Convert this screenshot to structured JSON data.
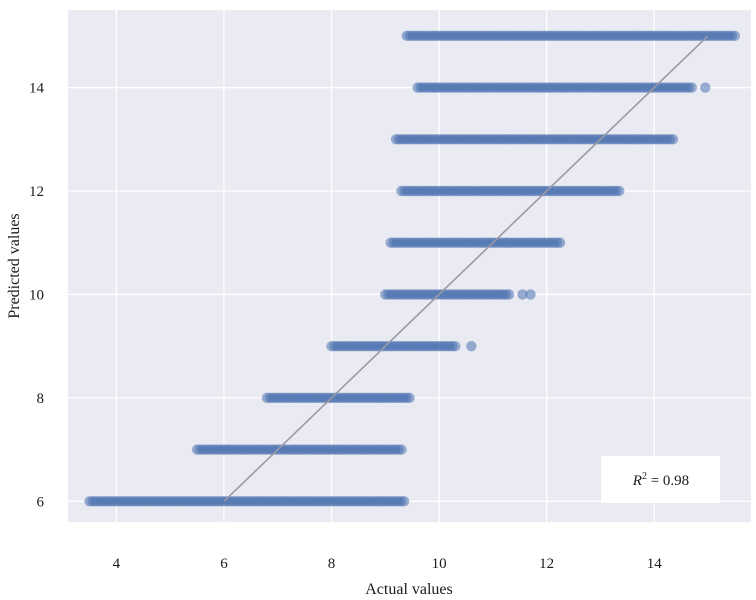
{
  "chart_data": {
    "type": "scatter",
    "xlabel": "Actual values",
    "ylabel": "Predicted values",
    "xlim": [
      3.1,
      15.8
    ],
    "ylim": [
      5.6,
      15.5
    ],
    "xticks": [
      4,
      6,
      8,
      10,
      12,
      14
    ],
    "yticks": [
      6,
      8,
      10,
      12,
      14
    ],
    "grid": true,
    "colors": {
      "background": "#eaeaf2",
      "grid": "#ffffff",
      "points": "#4c72b0",
      "fit_line": "#9a9aa6"
    },
    "annotation": {
      "r2_symbol": "R",
      "r2_superscript": "2",
      "r2_text": " = 0.98",
      "r2_value": 0.98,
      "placement": "bottom-right"
    },
    "fit_line": {
      "x": [
        6,
        15
      ],
      "y": [
        6,
        15
      ]
    },
    "bands": [
      {
        "y": 15,
        "x_min": 9.4,
        "x_max": 15.5,
        "outliers": []
      },
      {
        "y": 14,
        "x_min": 9.6,
        "x_max": 14.7,
        "outliers": [
          14.95
        ]
      },
      {
        "y": 13,
        "x_min": 9.2,
        "x_max": 14.35,
        "outliers": []
      },
      {
        "y": 12,
        "x_min": 9.3,
        "x_max": 13.35,
        "outliers": []
      },
      {
        "y": 11,
        "x_min": 9.1,
        "x_max": 12.25,
        "outliers": []
      },
      {
        "y": 10,
        "x_min": 9.0,
        "x_max": 11.3,
        "outliers": [
          11.55,
          11.7
        ]
      },
      {
        "y": 9,
        "x_min": 8.0,
        "x_max": 10.3,
        "outliers": [
          10.6
        ]
      },
      {
        "y": 8,
        "x_min": 6.8,
        "x_max": 9.45,
        "outliers": []
      },
      {
        "y": 7,
        "x_min": 5.5,
        "x_max": 9.3,
        "outliers": []
      },
      {
        "y": 6,
        "x_min": 3.5,
        "x_max": 9.35,
        "outliers": []
      }
    ]
  }
}
